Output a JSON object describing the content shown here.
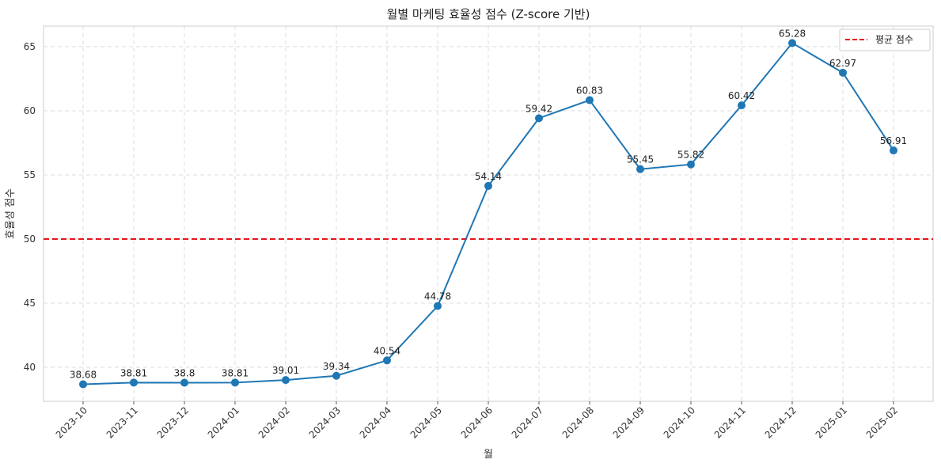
{
  "chart_data": {
    "type": "line",
    "title": "월별 마케팅 효율성 점수 (Z-score 기반)",
    "xlabel": "월",
    "ylabel": "효율성 점수",
    "categories": [
      "2023-10",
      "2023-11",
      "2023-12",
      "2024-01",
      "2024-02",
      "2024-03",
      "2024-04",
      "2024-05",
      "2024-06",
      "2024-07",
      "2024-08",
      "2024-09",
      "2024-10",
      "2024-11",
      "2024-12",
      "2025-01",
      "2025-02"
    ],
    "series": [
      {
        "values": [
          38.68,
          38.81,
          38.8,
          38.81,
          39.01,
          39.34,
          40.54,
          44.78,
          54.14,
          59.42,
          60.83,
          55.45,
          55.82,
          60.42,
          65.28,
          62.97,
          56.91
        ],
        "labels": [
          "38.68",
          "38.81",
          "38.8",
          "38.81",
          "39.01",
          "39.34",
          "40.54",
          "44.78",
          "54.14",
          "59.42",
          "60.83",
          "55.45",
          "55.82",
          "60.42",
          "65.28",
          "62.97",
          "56.91"
        ],
        "color": "#1f77b4"
      }
    ],
    "reference_line": {
      "name": "평균 점수",
      "value": 50,
      "color": "#e8141b",
      "style": "dashed"
    },
    "ylim": [
      37.35,
      66.6
    ],
    "yticks": [
      40,
      45,
      50,
      55,
      60,
      65
    ],
    "ytick_labels": [
      "40",
      "45",
      "50",
      "55",
      "60",
      "65"
    ],
    "grid": true,
    "legend_position": "top-right"
  }
}
